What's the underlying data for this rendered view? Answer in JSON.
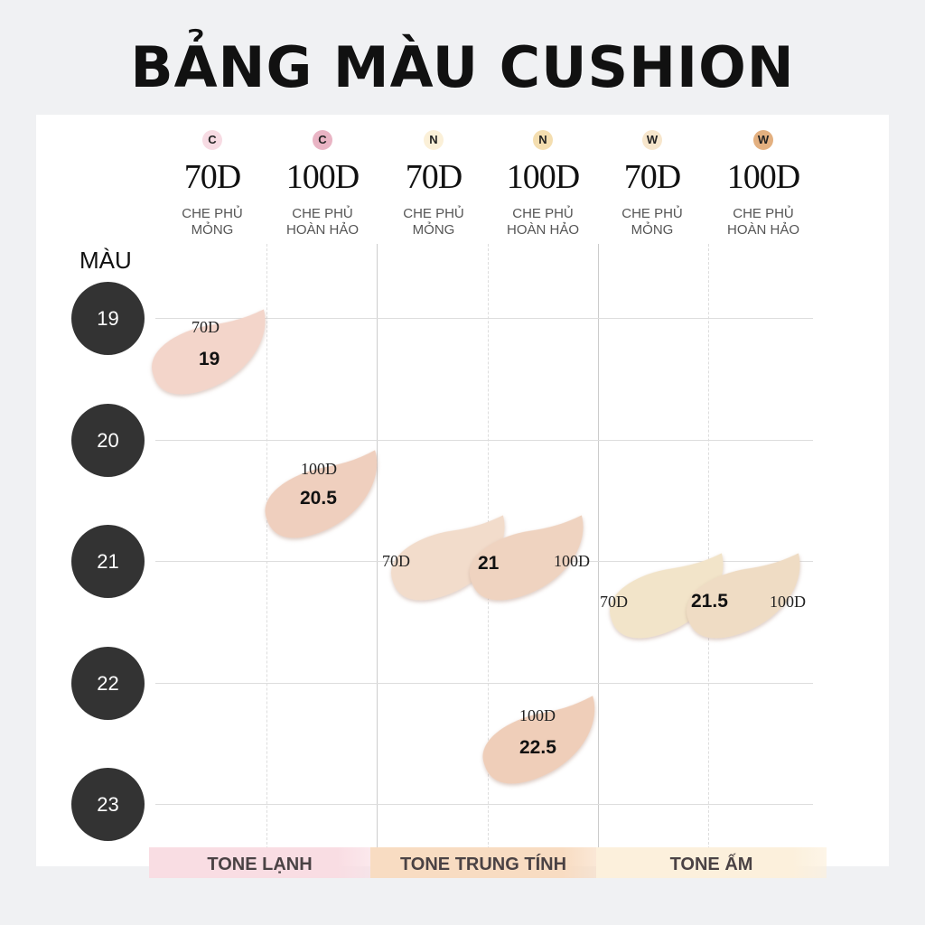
{
  "title": "BẢNG MÀU CUSHION",
  "columns": [
    {
      "badge": "C",
      "badge_color": "#f7dbe3",
      "denier": "70D",
      "coverage1": "CHE PHỦ",
      "coverage2": "MỎNG"
    },
    {
      "badge": "C",
      "badge_color": "#e9b4c4",
      "denier": "100D",
      "coverage1": "CHE PHỦ",
      "coverage2": "HOÀN HẢO"
    },
    {
      "badge": "N",
      "badge_color": "#fbf0d8",
      "denier": "70D",
      "coverage1": "CHE PHỦ",
      "coverage2": "MỎNG"
    },
    {
      "badge": "N",
      "badge_color": "#f4deb0",
      "denier": "100D",
      "coverage1": "CHE PHỦ",
      "coverage2": "HOÀN HẢO"
    },
    {
      "badge": "W",
      "badge_color": "#f7e6cc",
      "denier": "70D",
      "coverage1": "CHE PHỦ",
      "coverage2": "MỎNG"
    },
    {
      "badge": "W",
      "badge_color": "#e3b080",
      "denier": "100D",
      "coverage1": "CHE PHỦ",
      "coverage2": "HOÀN HẢO"
    }
  ],
  "row_header": "MÀU",
  "rows": [
    "19",
    "20",
    "21",
    "22",
    "23"
  ],
  "swatches": [
    {
      "denier": "70D",
      "shade": "19",
      "color": "#f3d5ca"
    },
    {
      "denier": "100D",
      "shade": "20.5",
      "color": "#efcfbe"
    },
    {
      "denier": "70D",
      "shade": "21",
      "color": "#f2dccb"
    },
    {
      "denier": "100D",
      "shade": "21",
      "color": "#efd3c0"
    },
    {
      "denier": "70D",
      "shade": "21.5",
      "color": "#f2e4c9"
    },
    {
      "denier": "100D",
      "shade": "21.5",
      "color": "#efdcc4"
    },
    {
      "denier": "100D",
      "shade": "22.5",
      "color": "#efceb9"
    }
  ],
  "tones": [
    {
      "label": "TONE LẠNH",
      "color": "#f9dde3"
    },
    {
      "label": "TONE TRUNG TÍNH",
      "color": "#f8dcc2"
    },
    {
      "label": "TONE ẤM",
      "color": "#fcf0dc"
    }
  ]
}
